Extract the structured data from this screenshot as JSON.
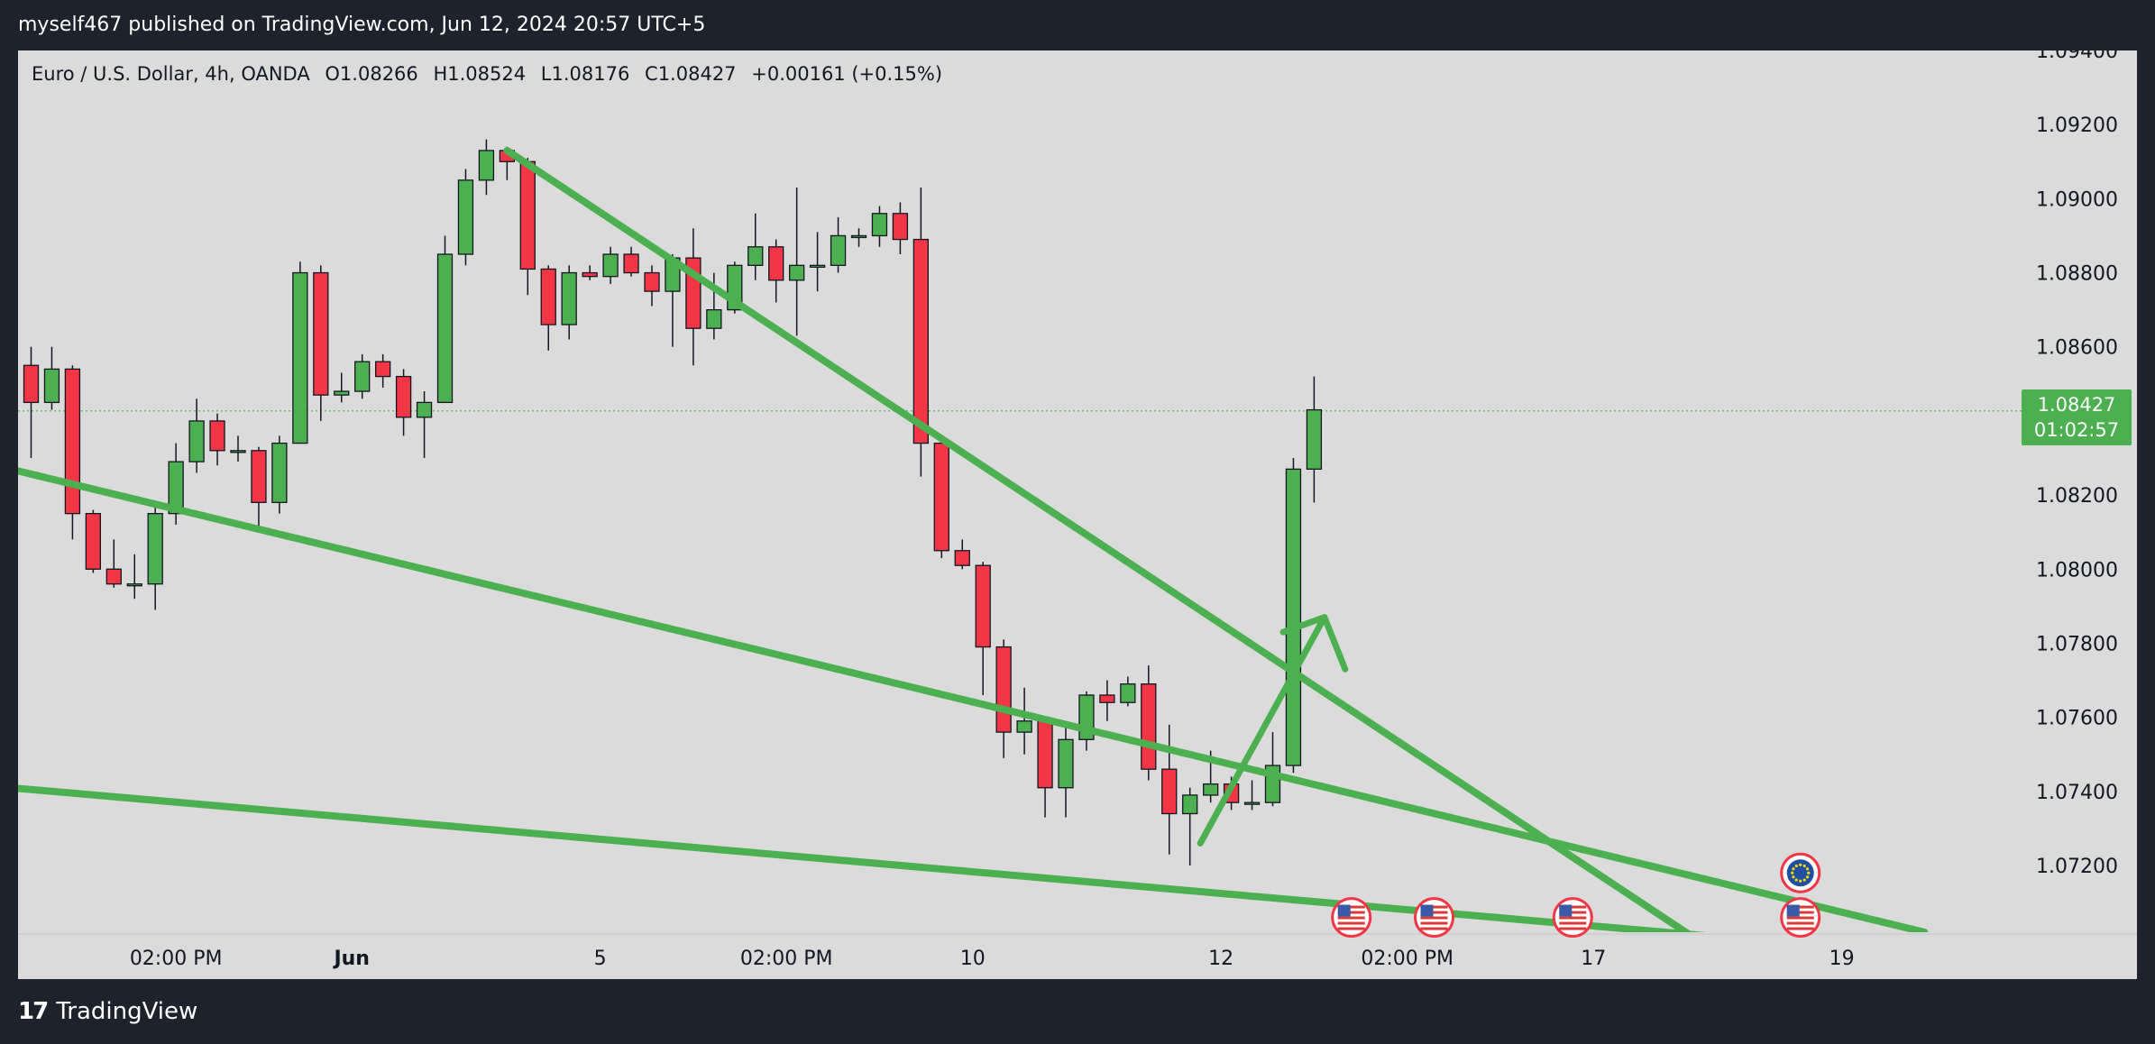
{
  "header": {
    "published_text": "myself467 published on TradingView.com, Jun 12, 2024 20:57 UTC+5"
  },
  "legend": {
    "symbol": "Euro / U.S. Dollar, 4h, OANDA",
    "open": "O1.08266",
    "high": "H1.08524",
    "low": "L1.08176",
    "close": "C1.08427",
    "change": "+0.00161 (+0.15%)"
  },
  "price_badge": {
    "price": "1.08427",
    "countdown": "01:02:57"
  },
  "footer": {
    "brand": "TradingView"
  },
  "colors": {
    "up": "#4caf50",
    "down": "#f23645",
    "trendline": "#4caf50",
    "background": "#dbdbdb",
    "frame": "#1e222d"
  },
  "chart_data": {
    "type": "candlestick",
    "ylim": [
      1.0702,
      1.094
    ],
    "y_ticks": [
      "1.09400",
      "1.09200",
      "1.09000",
      "1.08800",
      "1.08600",
      "1.08400",
      "1.08200",
      "1.08000",
      "1.07800",
      "1.07600",
      "1.07400",
      "1.07200"
    ],
    "y_tick_values": [
      1.094,
      1.092,
      1.09,
      1.088,
      1.086,
      1.084,
      1.082,
      1.08,
      1.078,
      1.076,
      1.074,
      1.072
    ],
    "x_ticks": [
      {
        "label": "02:00 PM",
        "index": 7,
        "bold": false
      },
      {
        "label": "Jun",
        "index": 15.5,
        "bold": true
      },
      {
        "label": "5",
        "index": 27.5,
        "bold": false
      },
      {
        "label": "02:00 PM",
        "index": 36.5,
        "bold": false
      },
      {
        "label": "10",
        "index": 45.5,
        "bold": false
      },
      {
        "label": "12",
        "index": 57.5,
        "bold": false
      },
      {
        "label": "02:00 PM",
        "index": 66.5,
        "bold": false
      },
      {
        "label": "17",
        "index": 75.5,
        "bold": false
      },
      {
        "label": "19",
        "index": 87.5,
        "bold": false
      }
    ],
    "candles": [
      {
        "o": 1.0855,
        "h": 1.086,
        "l": 1.083,
        "c": 1.0845
      },
      {
        "o": 1.0845,
        "h": 1.086,
        "l": 1.0843,
        "c": 1.0854
      },
      {
        "o": 1.0854,
        "h": 1.0855,
        "l": 1.0808,
        "c": 1.0815
      },
      {
        "o": 1.0815,
        "h": 1.0816,
        "l": 1.0799,
        "c": 1.08
      },
      {
        "o": 1.08,
        "h": 1.0808,
        "l": 1.0795,
        "c": 1.0796
      },
      {
        "o": 1.0796,
        "h": 1.0804,
        "l": 1.0792,
        "c": 1.0796
      },
      {
        "o": 1.0796,
        "h": 1.0818,
        "l": 1.0789,
        "c": 1.0815
      },
      {
        "o": 1.0815,
        "h": 1.0834,
        "l": 1.0812,
        "c": 1.0829
      },
      {
        "o": 1.0829,
        "h": 1.0846,
        "l": 1.0826,
        "c": 1.084
      },
      {
        "o": 1.084,
        "h": 1.0842,
        "l": 1.0828,
        "c": 1.0832
      },
      {
        "o": 1.0832,
        "h": 1.0836,
        "l": 1.0829,
        "c": 1.0832
      },
      {
        "o": 1.0832,
        "h": 1.0833,
        "l": 1.0811,
        "c": 1.0818
      },
      {
        "o": 1.0818,
        "h": 1.0836,
        "l": 1.0815,
        "c": 1.0834
      },
      {
        "o": 1.0834,
        "h": 1.0883,
        "l": 1.0834,
        "c": 1.088
      },
      {
        "o": 1.088,
        "h": 1.0882,
        "l": 1.084,
        "c": 1.0847
      },
      {
        "o": 1.0847,
        "h": 1.0853,
        "l": 1.0845,
        "c": 1.0848
      },
      {
        "o": 1.0848,
        "h": 1.0858,
        "l": 1.0846,
        "c": 1.0856
      },
      {
        "o": 1.0856,
        "h": 1.0858,
        "l": 1.0849,
        "c": 1.0852
      },
      {
        "o": 1.0852,
        "h": 1.0854,
        "l": 1.0836,
        "c": 1.0841
      },
      {
        "o": 1.0841,
        "h": 1.0848,
        "l": 1.083,
        "c": 1.0845
      },
      {
        "o": 1.0845,
        "h": 1.089,
        "l": 1.0845,
        "c": 1.0885
      },
      {
        "o": 1.0885,
        "h": 1.0908,
        "l": 1.0882,
        "c": 1.0905
      },
      {
        "o": 1.0905,
        "h": 1.0916,
        "l": 1.0901,
        "c": 1.0913
      },
      {
        "o": 1.0913,
        "h": 1.0914,
        "l": 1.0905,
        "c": 1.091
      },
      {
        "o": 1.091,
        "h": 1.0911,
        "l": 1.0874,
        "c": 1.0881
      },
      {
        "o": 1.0881,
        "h": 1.0882,
        "l": 1.0859,
        "c": 1.0866
      },
      {
        "o": 1.0866,
        "h": 1.0882,
        "l": 1.0862,
        "c": 1.088
      },
      {
        "o": 1.088,
        "h": 1.0882,
        "l": 1.0878,
        "c": 1.0879
      },
      {
        "o": 1.0879,
        "h": 1.0887,
        "l": 1.0877,
        "c": 1.0885
      },
      {
        "o": 1.0885,
        "h": 1.0887,
        "l": 1.0879,
        "c": 1.088
      },
      {
        "o": 1.088,
        "h": 1.0882,
        "l": 1.0871,
        "c": 1.0875
      },
      {
        "o": 1.0875,
        "h": 1.0885,
        "l": 1.086,
        "c": 1.0884
      },
      {
        "o": 1.0884,
        "h": 1.0892,
        "l": 1.0855,
        "c": 1.0865
      },
      {
        "o": 1.0865,
        "h": 1.088,
        "l": 1.0862,
        "c": 1.087
      },
      {
        "o": 1.087,
        "h": 1.0883,
        "l": 1.0869,
        "c": 1.0882
      },
      {
        "o": 1.0882,
        "h": 1.0896,
        "l": 1.0878,
        "c": 1.0887
      },
      {
        "o": 1.0887,
        "h": 1.0889,
        "l": 1.0872,
        "c": 1.0878
      },
      {
        "o": 1.0878,
        "h": 1.0903,
        "l": 1.0863,
        "c": 1.0882
      },
      {
        "o": 1.0882,
        "h": 1.0891,
        "l": 1.0875,
        "c": 1.0882
      },
      {
        "o": 1.0882,
        "h": 1.0895,
        "l": 1.088,
        "c": 1.089
      },
      {
        "o": 1.089,
        "h": 1.0892,
        "l": 1.0887,
        "c": 1.089
      },
      {
        "o": 1.089,
        "h": 1.0898,
        "l": 1.0887,
        "c": 1.0896
      },
      {
        "o": 1.0896,
        "h": 1.0899,
        "l": 1.0885,
        "c": 1.0889
      },
      {
        "o": 1.0889,
        "h": 1.0903,
        "l": 1.0825,
        "c": 1.0834
      },
      {
        "o": 1.0834,
        "h": 1.0836,
        "l": 1.0803,
        "c": 1.0805
      },
      {
        "o": 1.0805,
        "h": 1.0808,
        "l": 1.08,
        "c": 1.0801
      },
      {
        "o": 1.0801,
        "h": 1.0802,
        "l": 1.0766,
        "c": 1.0779
      },
      {
        "o": 1.0779,
        "h": 1.0781,
        "l": 1.0749,
        "c": 1.0756
      },
      {
        "o": 1.0756,
        "h": 1.0768,
        "l": 1.075,
        "c": 1.0759
      },
      {
        "o": 1.0759,
        "h": 1.0759,
        "l": 1.0733,
        "c": 1.0741
      },
      {
        "o": 1.0741,
        "h": 1.0758,
        "l": 1.0733,
        "c": 1.0754
      },
      {
        "o": 1.0754,
        "h": 1.0767,
        "l": 1.0751,
        "c": 1.0766
      },
      {
        "o": 1.0766,
        "h": 1.077,
        "l": 1.0759,
        "c": 1.0764
      },
      {
        "o": 1.0764,
        "h": 1.0771,
        "l": 1.0763,
        "c": 1.0769
      },
      {
        "o": 1.0769,
        "h": 1.0774,
        "l": 1.0743,
        "c": 1.0746
      },
      {
        "o": 1.0746,
        "h": 1.0758,
        "l": 1.0723,
        "c": 1.0734
      },
      {
        "o": 1.0734,
        "h": 1.0741,
        "l": 1.072,
        "c": 1.0739
      },
      {
        "o": 1.0739,
        "h": 1.0751,
        "l": 1.0737,
        "c": 1.0742
      },
      {
        "o": 1.0742,
        "h": 1.0744,
        "l": 1.0735,
        "c": 1.0737
      },
      {
        "o": 1.0737,
        "h": 1.0743,
        "l": 1.0735,
        "c": 1.0737
      },
      {
        "o": 1.0737,
        "h": 1.0756,
        "l": 1.0736,
        "c": 1.0747
      },
      {
        "o": 1.0747,
        "h": 1.083,
        "l": 1.0745,
        "c": 1.0827
      },
      {
        "o": 1.0827,
        "h": 1.0852,
        "l": 1.0818,
        "c": 1.0843
      }
    ],
    "current_price": 1.08427,
    "trendlines": [
      {
        "x1": 23,
        "y1": 1.0913,
        "x2": 80.5,
        "y2": 1.07
      },
      {
        "x1": -1,
        "y1": 1.0827,
        "x2": 91.5,
        "y2": 1.0702
      },
      {
        "x1": -1,
        "y1": 1.0741,
        "x2": 81,
        "y2": 1.0701
      }
    ],
    "arrow": {
      "line": {
        "x1": 56.5,
        "y1": 1.0726,
        "x2": 62.5,
        "y2": 1.0787
      },
      "head": [
        {
          "x1": 60.5,
          "y1": 1.0783,
          "x2": 62.5,
          "y2": 1.0787
        },
        {
          "x1": 62.5,
          "y1": 1.0787,
          "x2": 63.5,
          "y2": 1.0773
        }
      ]
    },
    "events": [
      {
        "index": 63.8,
        "price": 1.0706,
        "flag": "us-flag"
      },
      {
        "index": 67.8,
        "price": 1.0706,
        "flag": "us-flag"
      },
      {
        "index": 74.5,
        "price": 1.0706,
        "flag": "us-flag"
      },
      {
        "index": 85.5,
        "price": 1.0706,
        "flag": "us-flag"
      },
      {
        "index": 85.5,
        "price": 1.0718,
        "flag": "eu-flag"
      }
    ]
  }
}
